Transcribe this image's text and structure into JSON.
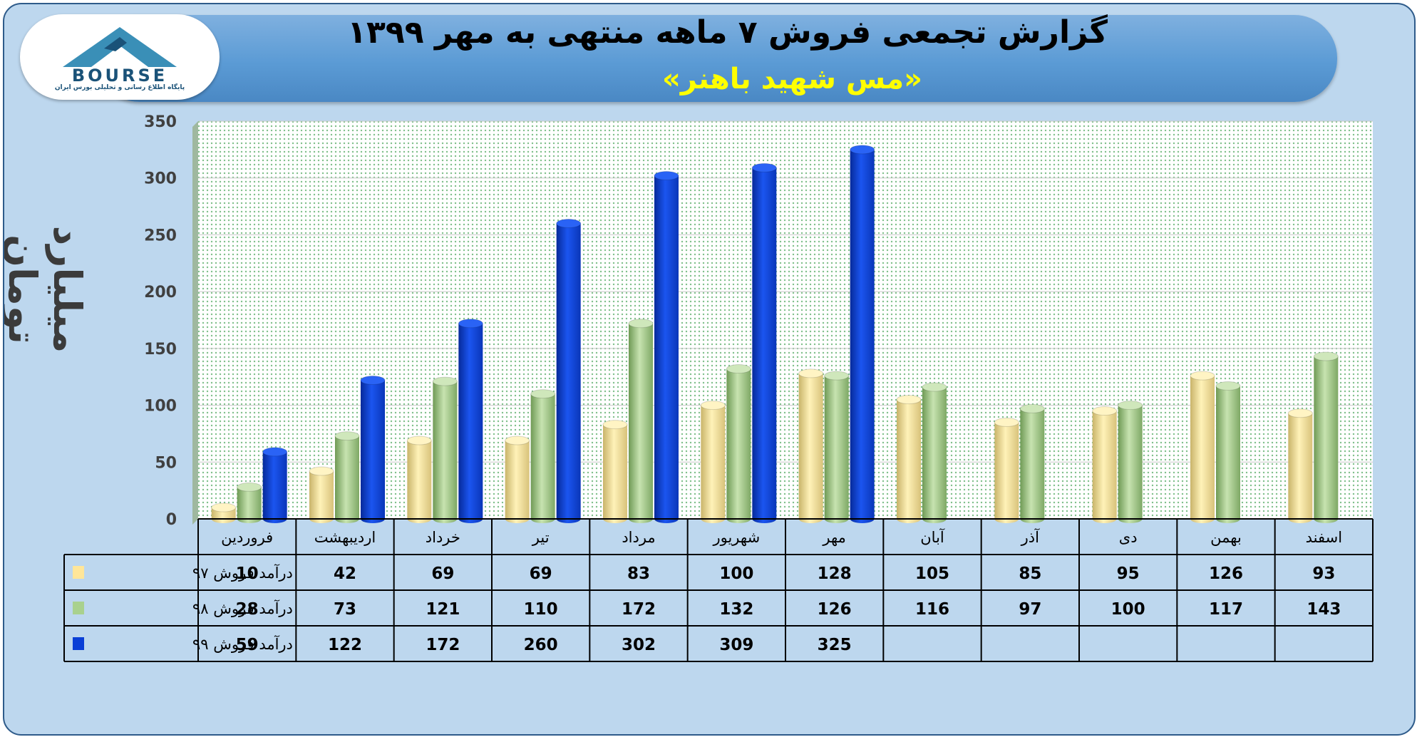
{
  "title": "گزارش تجمعی فروش ۷ ماهه منتهی به مهر ۱۳۹۹",
  "subtitle": "«مس شهید باهنر»",
  "logo": {
    "text": "BOURSE",
    "subtext": "پایگاه اطلاع رسانی و تحلیلی بورس ایران"
  },
  "colors": {
    "background": "#bdd7ee",
    "banner": "#5b9bd5",
    "series97": "#ffe699",
    "series98": "#a9d18e",
    "series99": "#0a3fd6"
  },
  "chart_data": {
    "type": "bar",
    "title": "گزارش تجمعی فروش ۷ ماهه منتهی به مهر ۱۳۹۹",
    "subtitle": "«مس شهید باهنر»",
    "ylabel": "میلیارد تومان",
    "xlabel": "",
    "ylim": [
      0,
      350
    ],
    "yticks": [
      "0",
      "50",
      "100",
      "150",
      "200",
      "250",
      "300",
      "350"
    ],
    "grid": true,
    "categories": [
      "فروردین",
      "اردیبهشت",
      "خرداد",
      "تیر",
      "مرداد",
      "شهریور",
      "مهر",
      "آبان",
      "آذر",
      "دی",
      "بهمن",
      "اسفند"
    ],
    "series": [
      {
        "name": "درآمد فروش ۹۷",
        "color": "#ffe699",
        "values": [
          10,
          42,
          69,
          69,
          83,
          100,
          128,
          105,
          85,
          95,
          126,
          93
        ]
      },
      {
        "name": "درآمد فروش ۹۸",
        "color": "#a9d18e",
        "values": [
          28,
          73,
          121,
          110,
          172,
          132,
          126,
          116,
          97,
          100,
          117,
          143
        ]
      },
      {
        "name": "درآمد فروش ۹۹",
        "color": "#0a3fd6",
        "values": [
          59,
          122,
          172,
          260,
          302,
          309,
          325,
          null,
          null,
          null,
          null,
          null
        ]
      }
    ],
    "legend_placement": "data-table"
  }
}
